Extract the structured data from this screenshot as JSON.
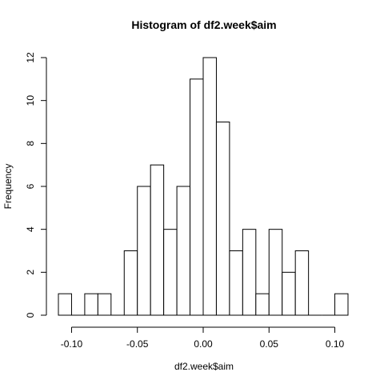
{
  "chart_data": {
    "type": "bar",
    "title": "Histogram of df2.week$aim",
    "xlabel": "df2.week$aim",
    "ylabel": "Frequency",
    "bin_edges": [
      -0.11,
      -0.1,
      -0.09,
      -0.08,
      -0.07,
      -0.06,
      -0.05,
      -0.04,
      -0.03,
      -0.02,
      -0.01,
      0.0,
      0.01,
      0.02,
      0.03,
      0.04,
      0.05,
      0.06,
      0.07,
      0.08,
      0.09,
      0.1,
      0.11
    ],
    "values": [
      1,
      0,
      1,
      1,
      0,
      3,
      6,
      7,
      4,
      6,
      11,
      12,
      9,
      3,
      4,
      1,
      4,
      2,
      3,
      0,
      0,
      1
    ],
    "xlim": [
      -0.11,
      0.11
    ],
    "ylim": [
      0,
      12
    ],
    "x_ticks": [
      -0.1,
      -0.05,
      0.0,
      0.05,
      0.1
    ],
    "x_tick_labels": [
      "-0.10",
      "-0.05",
      "0.00",
      "0.05",
      "0.10"
    ],
    "y_ticks": [
      0,
      2,
      4,
      6,
      8,
      10,
      12
    ],
    "y_tick_labels": [
      "0",
      "2",
      "4",
      "6",
      "8",
      "10",
      "12"
    ],
    "grid": false,
    "bar_fill": "#ffffff",
    "bar_stroke": "#000000"
  }
}
